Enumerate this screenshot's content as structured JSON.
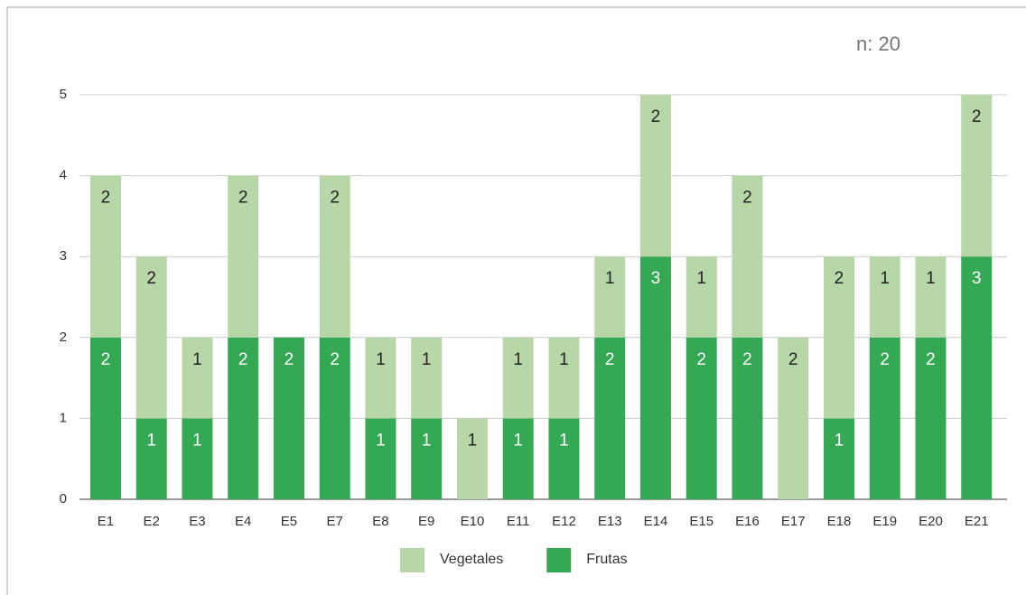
{
  "chart_data": {
    "type": "stacked_bar",
    "annotation": "n: 20",
    "categories": [
      "E1",
      "E2",
      "E3",
      "E4",
      "E5",
      "E7",
      "E8",
      "E9",
      "E10",
      "E11",
      "E12",
      "E13",
      "E14",
      "E15",
      "E16",
      "E17",
      "E18",
      "E19",
      "E20",
      "E21"
    ],
    "series": [
      {
        "name": "Frutas",
        "color": "#34a853",
        "label_color": "#ffffff",
        "values": [
          2,
          1,
          1,
          2,
          2,
          2,
          1,
          1,
          0,
          1,
          1,
          2,
          3,
          2,
          2,
          0,
          1,
          2,
          2,
          3
        ]
      },
      {
        "name": "Vegetales",
        "color": "#b7d7a8",
        "label_color": "#222222",
        "values": [
          2,
          2,
          1,
          2,
          0,
          2,
          1,
          1,
          1,
          1,
          1,
          1,
          2,
          1,
          2,
          2,
          2,
          1,
          1,
          2
        ]
      }
    ],
    "ylim": [
      0,
      5
    ],
    "yticks": [
      0,
      1,
      2,
      3,
      4,
      5
    ],
    "grid": true,
    "legend": "bottom"
  }
}
